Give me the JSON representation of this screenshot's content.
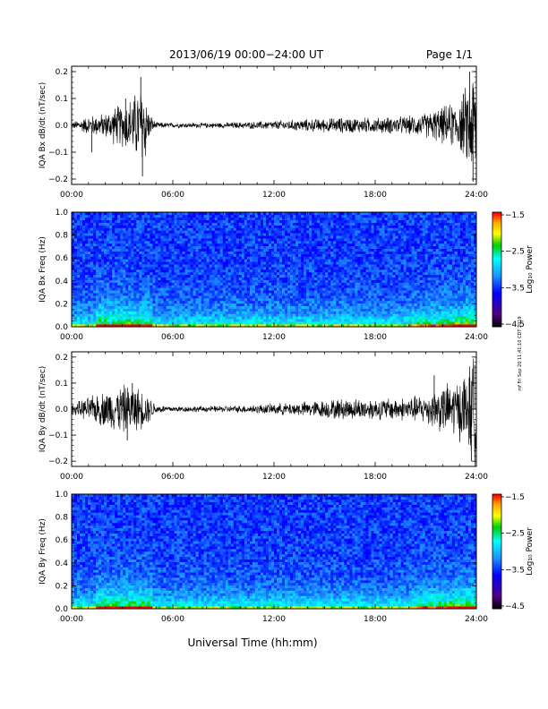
{
  "header": {
    "title": "2013/06/19  00:00−24:00 UT",
    "page": "Page 1/1"
  },
  "footer": {
    "xlabel": "Universal Time (hh:mm)"
  },
  "side_stamp": "mf Fri Sep 20 11:41:10 CDT 2019",
  "colorbar": {
    "label": "Log₁₀ Power",
    "ticks": [
      "−1.5",
      "−2.5",
      "−3.5",
      "−4.5"
    ],
    "colors": [
      "#ff0000",
      "#ffa500",
      "#ffff00",
      "#00cc00",
      "#00ffff",
      "#1e90ff",
      "#0000ff",
      "#4b0082",
      "#000000"
    ]
  },
  "chart_data": [
    {
      "type": "line",
      "ylabel": "IQA Bx dB/dt (nT/sec)",
      "x_ticks": [
        "00:00",
        "06:00",
        "12:00",
        "18:00",
        "24:00"
      ],
      "y_ticks": [
        "0.2",
        "0.1",
        "0.0",
        "−0.1",
        "−0.2"
      ],
      "xlim": [
        0,
        24
      ],
      "ylim": [
        -0.22,
        0.22
      ],
      "envelope": [
        [
          0,
          0.01
        ],
        [
          1,
          0.03
        ],
        [
          2,
          0.04
        ],
        [
          2.5,
          0.06
        ],
        [
          3,
          0.07
        ],
        [
          3.5,
          0.09
        ],
        [
          4,
          0.12
        ],
        [
          4.3,
          0.15
        ],
        [
          4.6,
          0.04
        ],
        [
          5,
          0.01
        ],
        [
          6,
          0.008
        ],
        [
          8,
          0.008
        ],
        [
          10,
          0.01
        ],
        [
          12,
          0.015
        ],
        [
          14,
          0.02
        ],
        [
          16,
          0.025
        ],
        [
          18,
          0.025
        ],
        [
          20,
          0.03
        ],
        [
          21,
          0.04
        ],
        [
          22,
          0.06
        ],
        [
          23,
          0.08
        ],
        [
          23.5,
          0.14
        ],
        [
          23.9,
          0.2
        ],
        [
          24,
          0.18
        ]
      ],
      "spikes": [
        [
          4.1,
          0.18
        ],
        [
          4.2,
          -0.19
        ],
        [
          23.6,
          0.2
        ],
        [
          23.8,
          -0.21
        ],
        [
          3.2,
          0.1
        ],
        [
          1.2,
          -0.1
        ]
      ]
    },
    {
      "type": "heatmap",
      "ylabel": "IQA Bx Freq (Hz)",
      "x_ticks": [
        "00:00",
        "06:00",
        "12:00",
        "18:00",
        "24:00"
      ],
      "y_ticks": [
        "1.0",
        "0.8",
        "0.6",
        "0.4",
        "0.2",
        "0.0"
      ],
      "xlim": [
        0,
        24
      ],
      "ylim": [
        0,
        1.0
      ],
      "zlim": [
        -4.5,
        -1.5
      ],
      "zscale": "log10"
    },
    {
      "type": "line",
      "ylabel": "IQA By dB/dt (nT/sec)",
      "x_ticks": [
        "00:00",
        "06:00",
        "12:00",
        "18:00",
        "24:00"
      ],
      "y_ticks": [
        "0.2",
        "0.1",
        "0.0",
        "−0.1",
        "−0.2"
      ],
      "xlim": [
        0,
        24
      ],
      "ylim": [
        -0.22,
        0.22
      ],
      "envelope": [
        [
          0,
          0.015
        ],
        [
          1,
          0.04
        ],
        [
          2,
          0.06
        ],
        [
          2.5,
          0.07
        ],
        [
          3,
          0.08
        ],
        [
          3.5,
          0.08
        ],
        [
          4,
          0.07
        ],
        [
          4.5,
          0.05
        ],
        [
          5,
          0.015
        ],
        [
          6,
          0.01
        ],
        [
          8,
          0.01
        ],
        [
          10,
          0.012
        ],
        [
          12,
          0.018
        ],
        [
          14,
          0.025
        ],
        [
          16,
          0.035
        ],
        [
          18,
          0.035
        ],
        [
          20,
          0.04
        ],
        [
          21,
          0.05
        ],
        [
          22,
          0.08
        ],
        [
          23,
          0.1
        ],
        [
          23.5,
          0.14
        ],
        [
          23.9,
          0.18
        ],
        [
          24,
          0.15
        ]
      ],
      "spikes": [
        [
          3.3,
          -0.12
        ],
        [
          3.6,
          0.1
        ],
        [
          23.7,
          -0.2
        ],
        [
          23.9,
          0.17
        ],
        [
          21.5,
          0.13
        ]
      ]
    },
    {
      "type": "heatmap",
      "ylabel": "IQA By Freq (Hz)",
      "x_ticks": [
        "00:00",
        "06:00",
        "12:00",
        "18:00",
        "24:00"
      ],
      "y_ticks": [
        "1.0",
        "0.8",
        "0.6",
        "0.4",
        "0.2",
        "0.0"
      ],
      "xlim": [
        0,
        24
      ],
      "ylim": [
        0,
        1.0
      ],
      "zlim": [
        -4.5,
        -1.5
      ],
      "zscale": "log10"
    }
  ]
}
